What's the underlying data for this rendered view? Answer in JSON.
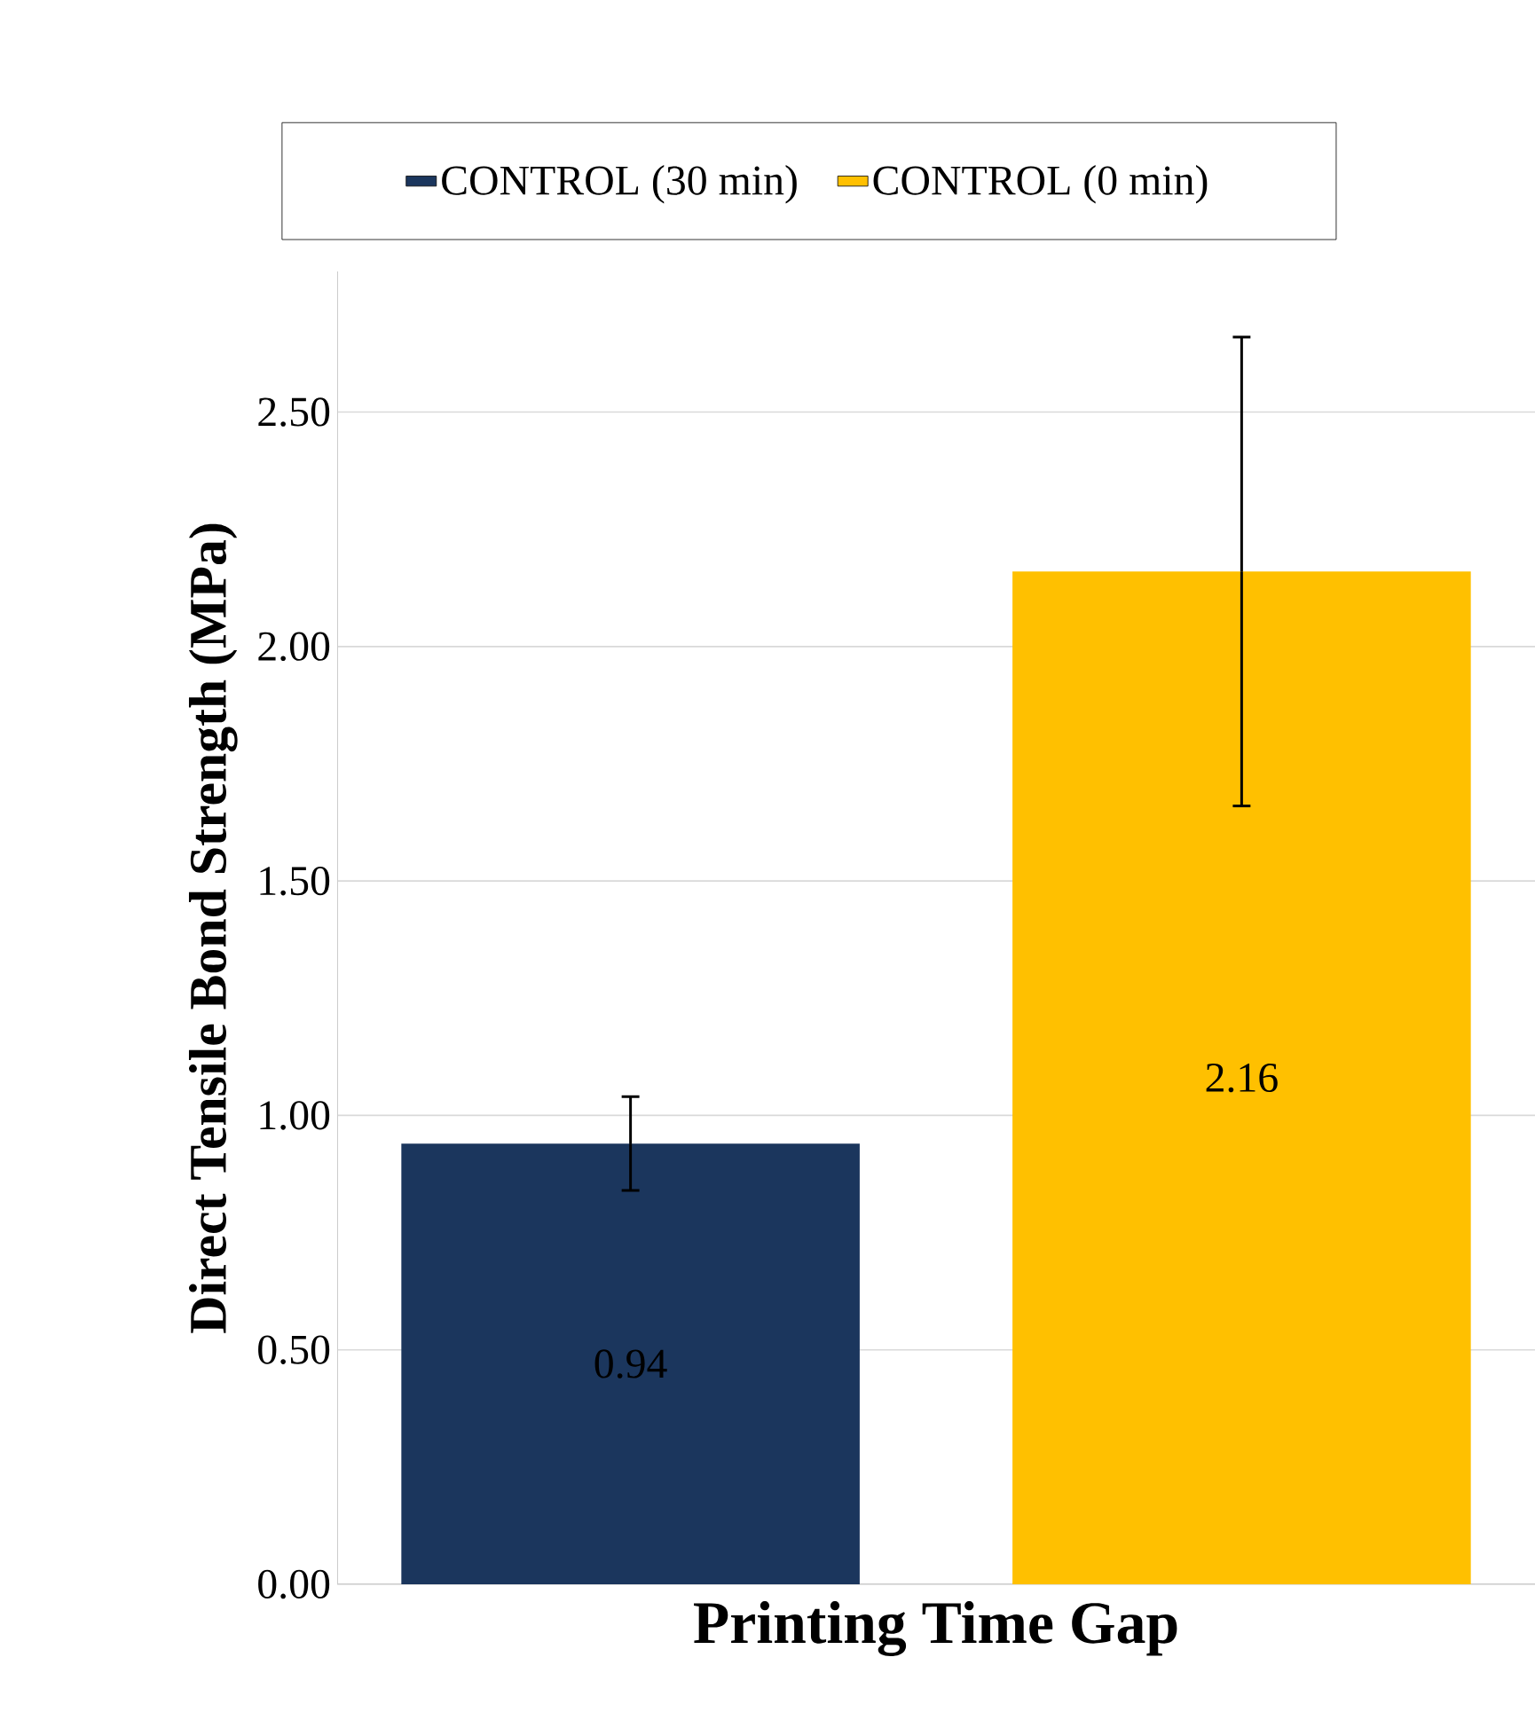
{
  "chart_data": {
    "type": "bar",
    "xlabel": "Printing Time Gap",
    "ylabel": "Direct Tensile Bond Strength (MPa)",
    "categories": [
      null
    ],
    "series": [
      {
        "name": "CONTROL (30 min)",
        "color": "#1b365d",
        "values": [
          0.94
        ],
        "errors": [
          0.1
        ]
      },
      {
        "name": "CONTROL (0 min)",
        "color": "#ffc000",
        "values": [
          2.16
        ],
        "errors": [
          0.5
        ]
      }
    ],
    "ylim": [
      0,
      2.8
    ],
    "yticks": [
      {
        "value": 0,
        "label": "0.00"
      },
      {
        "value": 0.5,
        "label": "0.50"
      },
      {
        "value": 1,
        "label": "1.00"
      },
      {
        "value": 1.5,
        "label": "1.50"
      },
      {
        "value": 2,
        "label": "2.00"
      },
      {
        "value": 2.5,
        "label": "2.50"
      }
    ],
    "grid": "y",
    "legend": "top",
    "data_labels": true
  }
}
